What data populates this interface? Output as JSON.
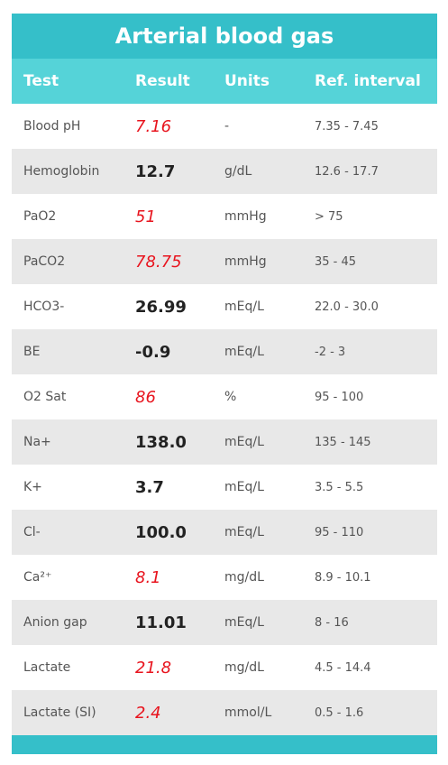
{
  "title": "Arterial blood gas",
  "headers": {
    "test": "Test",
    "result": "Result",
    "units": "Units",
    "ref": "Ref. interval"
  },
  "rows": [
    {
      "test": "Blood pH",
      "result": "7.16",
      "units": "-",
      "ref": "7.35 - 7.45",
      "abnormal": true
    },
    {
      "test": "Hemoglobin",
      "result": "12.7",
      "units": "g/dL",
      "ref": "12.6 - 17.7",
      "abnormal": false
    },
    {
      "test": "PaO2",
      "result": "51",
      "units": "mmHg",
      "ref": "> 75",
      "abnormal": true
    },
    {
      "test": "PaCO2",
      "result": "78.75",
      "units": "mmHg",
      "ref": "35 - 45",
      "abnormal": true
    },
    {
      "test": "HCO3-",
      "result": "26.99",
      "units": "mEq/L",
      "ref": "22.0 - 30.0",
      "abnormal": false
    },
    {
      "test": "BE",
      "result": "-0.9",
      "units": "mEq/L",
      "ref": "-2 - 3",
      "abnormal": false
    },
    {
      "test": "O2 Sat",
      "result": "86",
      "units": "%",
      "ref": "95 - 100",
      "abnormal": true
    },
    {
      "test": "Na+",
      "result": "138.0",
      "units": "mEq/L",
      "ref": "135 - 145",
      "abnormal": false
    },
    {
      "test": "K+",
      "result": "3.7",
      "units": "mEq/L",
      "ref": "3.5 - 5.5",
      "abnormal": false
    },
    {
      "test": "Cl-",
      "result": "100.0",
      "units": "mEq/L",
      "ref": "95 - 110",
      "abnormal": false
    },
    {
      "test": "Ca²⁺",
      "result": "8.1",
      "units": "mg/dL",
      "ref": "8.9 - 10.1",
      "abnormal": true
    },
    {
      "test": "Anion gap",
      "result": "11.01",
      "units": "mEq/L",
      "ref": "8 - 16",
      "abnormal": false
    },
    {
      "test": "Lactate",
      "result": "21.8",
      "units": "mg/dL",
      "ref": "4.5 - 14.4",
      "abnormal": true
    },
    {
      "test": "Lactate (SI)",
      "result": "2.4",
      "units": "mmol/L",
      "ref": "0.5 - 1.6",
      "abnormal": true
    }
  ],
  "colors": {
    "title_bg": "#35bfc9",
    "header_bg": "#55d3d8",
    "abnormal": "#e8141e",
    "stripe": "#e8e8e8"
  }
}
